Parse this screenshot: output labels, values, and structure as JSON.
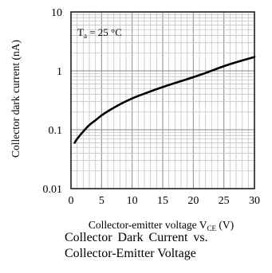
{
  "chart_data": {
    "type": "line",
    "title": "",
    "annotation": {
      "text": "T",
      "subscript": "a",
      "rest": " = 25 °C"
    },
    "xlabel": {
      "main": "Collector-emitter voltage V",
      "sub": "CE",
      "unit": " (V)"
    },
    "ylabel": "Collector dark current (nA)",
    "xlim": [
      0,
      30
    ],
    "ylim": [
      0.01,
      10
    ],
    "yscale": "log",
    "grid": true,
    "legend": "none",
    "x_ticks": [
      "0",
      "5",
      "10",
      "15",
      "20",
      "25",
      "30"
    ],
    "y_ticks": [
      "0.01",
      "0.1",
      "1",
      "10"
    ],
    "series": [
      {
        "x": [
          0.6,
          1,
          2,
          3,
          4,
          5,
          6,
          8,
          10,
          12,
          15,
          18,
          20,
          22,
          25,
          27,
          30
        ],
        "y": [
          0.06,
          0.07,
          0.093,
          0.12,
          0.145,
          0.175,
          0.205,
          0.27,
          0.34,
          0.41,
          0.53,
          0.67,
          0.78,
          0.92,
          1.2,
          1.4,
          1.72
        ]
      }
    ]
  },
  "caption": {
    "line1": "Collector Dark Current vs.",
    "line2": "Collector-Emitter Voltage"
  }
}
